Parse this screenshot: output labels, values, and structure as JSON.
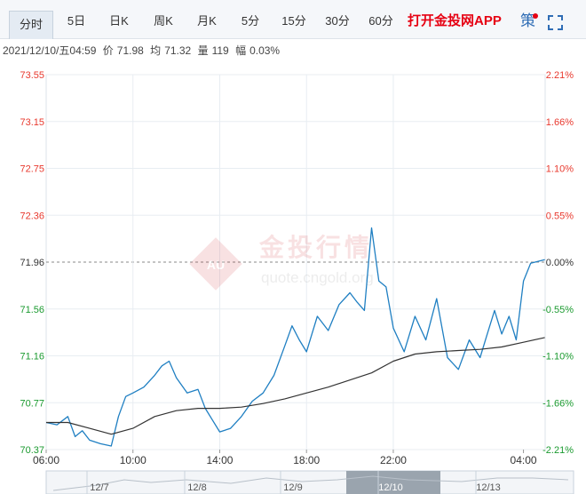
{
  "tabs": [
    {
      "label": "分时",
      "active": true
    },
    {
      "label": "5日"
    },
    {
      "label": "日K"
    },
    {
      "label": "周K"
    },
    {
      "label": "月K"
    },
    {
      "label": "5分"
    },
    {
      "label": "15分"
    },
    {
      "label": "30分"
    },
    {
      "label": "60分"
    }
  ],
  "promo_label": "打开金投网APP",
  "strategy_label": "策",
  "info": {
    "datetime": "2021/12/10/五04:59",
    "price_label": "价",
    "price": "71.98",
    "avg_label": "均",
    "avg": "71.32",
    "volume_label": "量",
    "volume": "119",
    "change_label": "幅",
    "change": "0.03%"
  },
  "watermark": {
    "name": "金投行情",
    "url": "quote.cngold.org",
    "logo": "AU"
  },
  "colors": {
    "up": "#e8392e",
    "down": "#1a9a2f",
    "price_line": "#1f7fc2",
    "avg_line": "#333333",
    "grid": "#e8edf2"
  },
  "chart_data": {
    "type": "line",
    "reference_price": 71.96,
    "ylim": [
      70.37,
      73.55
    ],
    "left_ticks": [
      "73.55",
      "73.15",
      "72.75",
      "72.36",
      "71.96",
      "71.56",
      "71.16",
      "70.77",
      "70.37"
    ],
    "right_ticks": [
      "2.21%",
      "1.66%",
      "1.10%",
      "0.55%",
      "0.00%",
      "-0.55%",
      "-1.10%",
      "-1.66%",
      "-2.21%"
    ],
    "x_ticks": [
      "06:00",
      "10:00",
      "14:00",
      "18:00",
      "22:00",
      "04:00"
    ],
    "time_range": [
      "06:00",
      "04:59"
    ],
    "series": [
      {
        "role": "price",
        "x": [
          "06:00",
          "06:30",
          "07:00",
          "07:20",
          "07:40",
          "08:00",
          "08:30",
          "09:00",
          "09:20",
          "09:40",
          "10:00",
          "10:30",
          "11:00",
          "11:20",
          "11:40",
          "12:00",
          "12:30",
          "13:00",
          "13:20",
          "13:40",
          "14:00",
          "14:30",
          "15:00",
          "15:30",
          "16:00",
          "16:30",
          "17:00",
          "17:20",
          "17:40",
          "18:00",
          "18:30",
          "19:00",
          "19:30",
          "20:00",
          "20:20",
          "20:40",
          "21:00",
          "21:20",
          "21:40",
          "22:00",
          "22:30",
          "23:00",
          "23:30",
          "00:00",
          "00:30",
          "01:00",
          "01:30",
          "02:00",
          "02:20",
          "02:40",
          "03:00",
          "03:20",
          "03:40",
          "04:00",
          "04:20",
          "04:59"
        ],
        "values": [
          70.6,
          70.58,
          70.65,
          70.48,
          70.53,
          70.45,
          70.42,
          70.4,
          70.65,
          70.82,
          70.85,
          70.9,
          71.0,
          71.08,
          71.12,
          70.98,
          70.85,
          70.88,
          70.72,
          70.62,
          70.52,
          70.55,
          70.65,
          70.78,
          70.85,
          71.0,
          71.25,
          71.42,
          71.3,
          71.2,
          71.5,
          71.38,
          71.6,
          71.7,
          71.62,
          71.55,
          72.25,
          71.8,
          71.75,
          71.4,
          71.2,
          71.5,
          71.3,
          71.65,
          71.15,
          71.05,
          71.3,
          71.15,
          71.35,
          71.55,
          71.35,
          71.5,
          71.3,
          71.8,
          71.95,
          71.98
        ]
      },
      {
        "role": "average",
        "x": [
          "06:00",
          "07:00",
          "08:00",
          "09:00",
          "10:00",
          "11:00",
          "12:00",
          "13:00",
          "14:00",
          "15:00",
          "16:00",
          "17:00",
          "18:00",
          "19:00",
          "20:00",
          "21:00",
          "22:00",
          "23:00",
          "00:00",
          "01:00",
          "02:00",
          "03:00",
          "04:00",
          "04:59"
        ],
        "values": [
          70.6,
          70.6,
          70.55,
          70.5,
          70.55,
          70.65,
          70.7,
          70.72,
          70.72,
          70.73,
          70.76,
          70.8,
          70.85,
          70.9,
          70.96,
          71.02,
          71.12,
          71.18,
          71.2,
          71.21,
          71.22,
          71.24,
          71.28,
          71.32
        ]
      }
    ]
  },
  "navigator": {
    "labels": [
      "12/7",
      "12/8",
      "12/9",
      "12/10",
      "12/13"
    ]
  }
}
